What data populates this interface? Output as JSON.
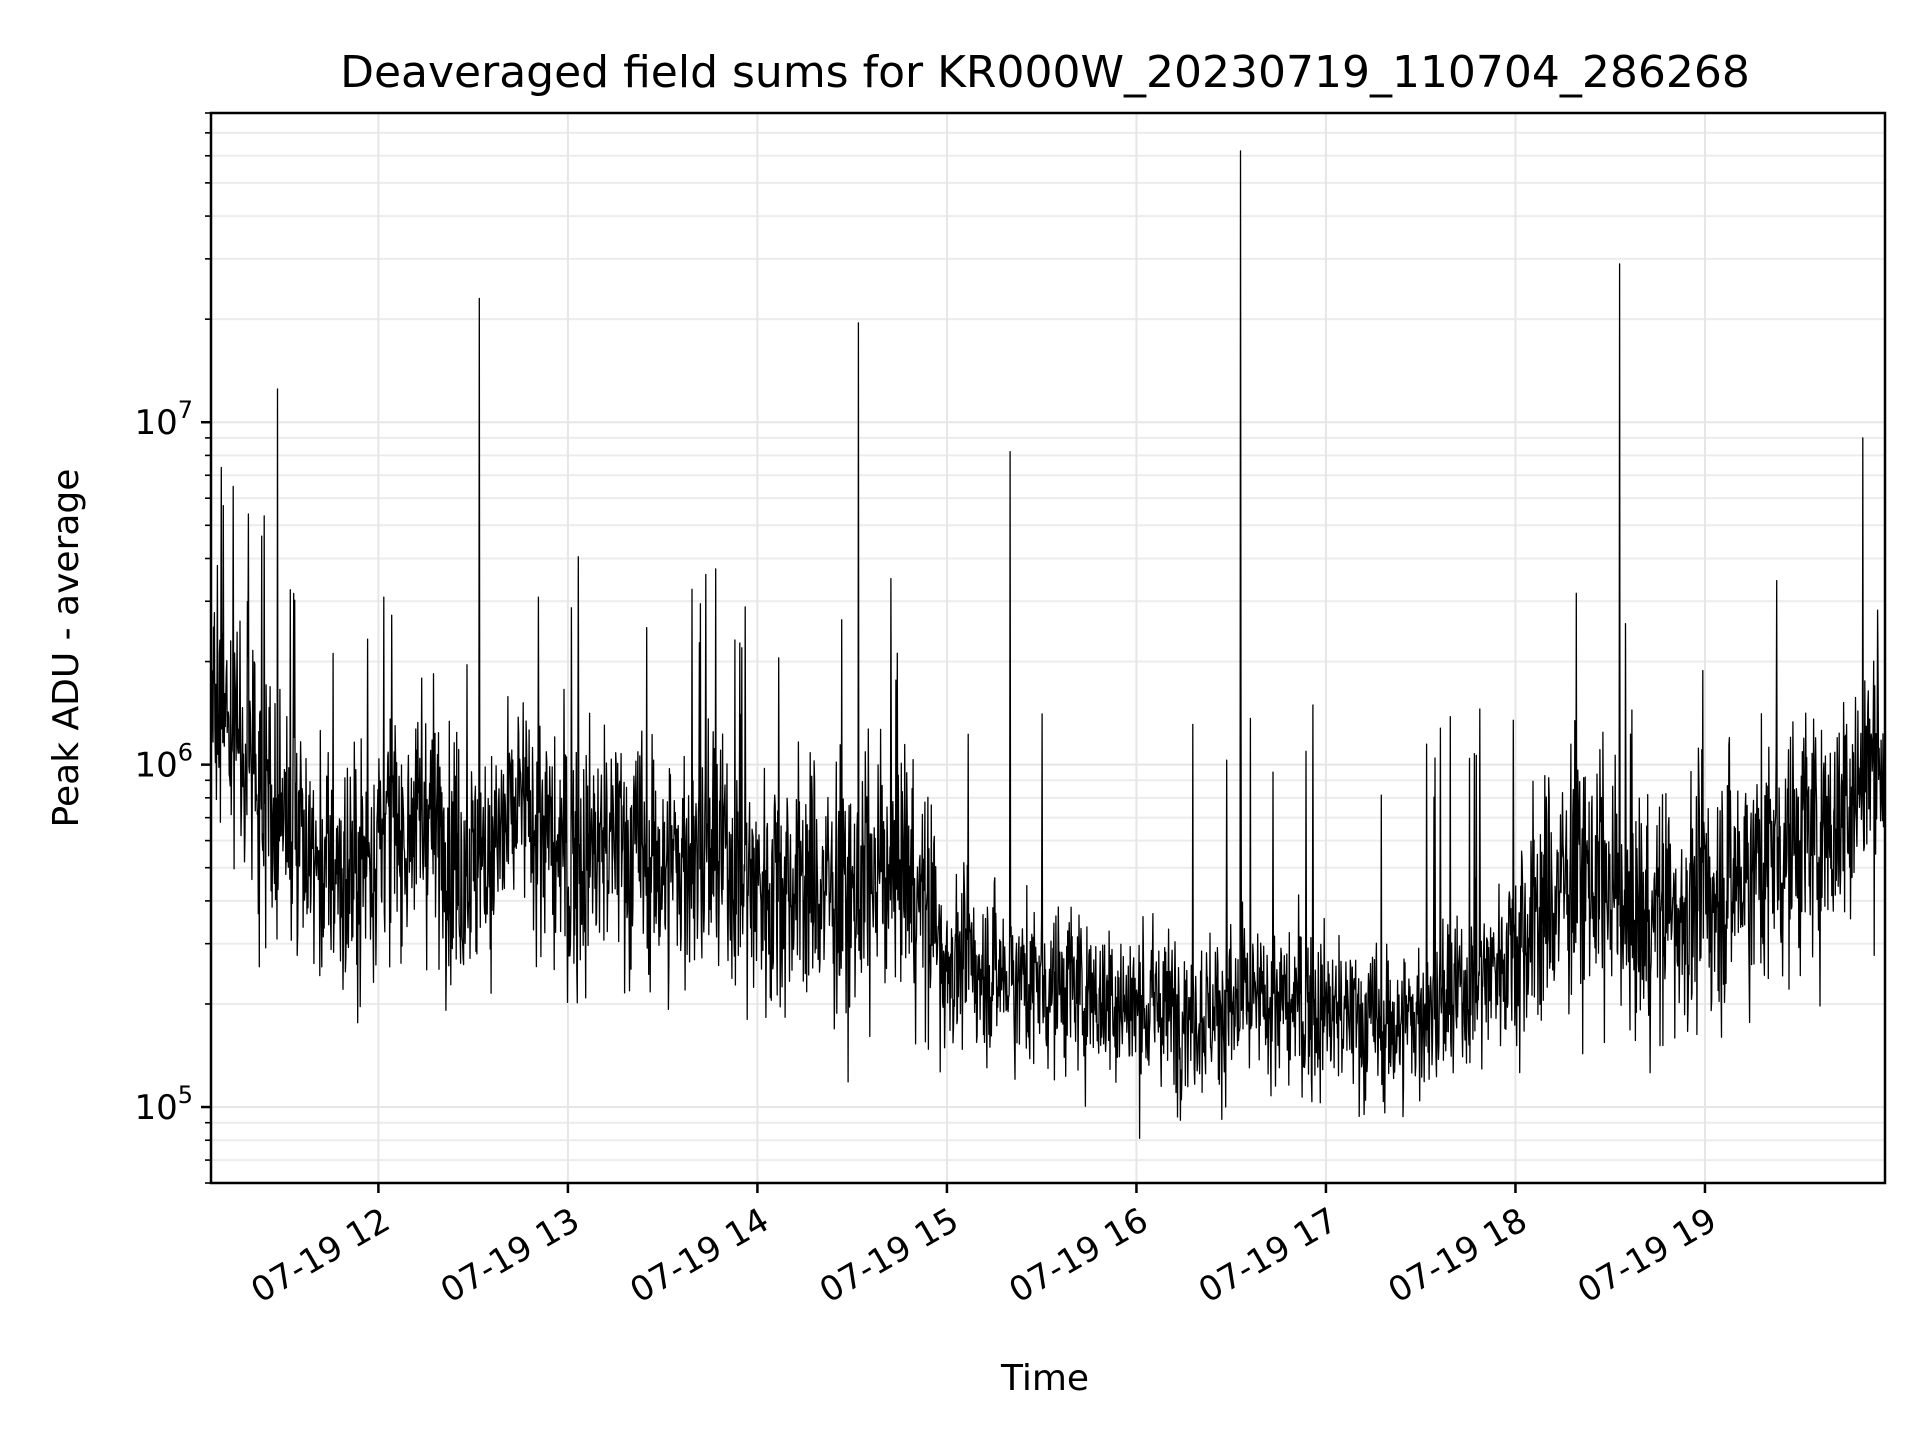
{
  "chart_data": {
    "type": "line",
    "title": "Deaveraged field sums for KR000W_20230719_110704_286268",
    "xlabel": "Time",
    "ylabel": "Peak ADU - average",
    "y_scale": "log",
    "ylim": [
      60000,
      80000000
    ],
    "xlim": [
      "07-19 11:07",
      "07-19 19:57"
    ],
    "grid": true,
    "colors": {
      "series": "#000000",
      "grid": "#e6e6e6"
    },
    "x_ticks": [
      {
        "t": "07-19 12:00",
        "label": "07-19 12"
      },
      {
        "t": "07-19 13:00",
        "label": "07-19 13"
      },
      {
        "t": "07-19 14:00",
        "label": "07-19 14"
      },
      {
        "t": "07-19 15:00",
        "label": "07-19 15"
      },
      {
        "t": "07-19 16:00",
        "label": "07-19 16"
      },
      {
        "t": "07-19 17:00",
        "label": "07-19 17"
      },
      {
        "t": "07-19 18:00",
        "label": "07-19 18"
      },
      {
        "t": "07-19 19:00",
        "label": "07-19 19"
      }
    ],
    "y_ticks": [
      {
        "value": 100000,
        "base": "10",
        "exp": "5"
      },
      {
        "value": 1000000,
        "base": "10",
        "exp": "6"
      },
      {
        "value": 10000000,
        "base": "10",
        "exp": "7"
      }
    ],
    "series": [
      {
        "baseline": [
          {
            "t": "07-19 11:07",
            "y": 1500000
          },
          {
            "t": "07-19 11:20",
            "y": 1000000
          },
          {
            "t": "07-19 11:35",
            "y": 550000
          },
          {
            "t": "07-19 11:50",
            "y": 450000
          },
          {
            "t": "07-19 12:00",
            "y": 600000
          },
          {
            "t": "07-19 12:15",
            "y": 700000
          },
          {
            "t": "07-19 12:30",
            "y": 500000
          },
          {
            "t": "07-19 12:45",
            "y": 750000
          },
          {
            "t": "07-19 13:00",
            "y": 500000
          },
          {
            "t": "07-19 13:15",
            "y": 600000
          },
          {
            "t": "07-19 13:30",
            "y": 500000
          },
          {
            "t": "07-19 13:45",
            "y": 550000
          },
          {
            "t": "07-19 14:00",
            "y": 450000
          },
          {
            "t": "07-19 14:15",
            "y": 450000
          },
          {
            "t": "07-19 14:30",
            "y": 400000
          },
          {
            "t": "07-19 14:45",
            "y": 550000
          },
          {
            "t": "07-19 15:00",
            "y": 270000
          },
          {
            "t": "07-19 15:20",
            "y": 240000
          },
          {
            "t": "07-19 15:40",
            "y": 220000
          },
          {
            "t": "07-19 16:00",
            "y": 195000
          },
          {
            "t": "07-19 16:20",
            "y": 190000
          },
          {
            "t": "07-19 16:40",
            "y": 200000
          },
          {
            "t": "07-19 17:00",
            "y": 190000
          },
          {
            "t": "07-19 17:20",
            "y": 170000
          },
          {
            "t": "07-19 17:40",
            "y": 200000
          },
          {
            "t": "07-19 18:00",
            "y": 300000
          },
          {
            "t": "07-19 18:20",
            "y": 500000
          },
          {
            "t": "07-19 18:40",
            "y": 350000
          },
          {
            "t": "07-19 19:00",
            "y": 400000
          },
          {
            "t": "07-19 19:20",
            "y": 550000
          },
          {
            "t": "07-19 19:40",
            "y": 650000
          },
          {
            "t": "07-19 19:57",
            "y": 1200000
          }
        ],
        "spikes": [
          {
            "t": "07-19 11:28",
            "y": 12500000
          },
          {
            "t": "07-19 12:32",
            "y": 23000000
          },
          {
            "t": "07-19 14:32",
            "y": 19500000
          },
          {
            "t": "07-19 15:20",
            "y": 8200000
          },
          {
            "t": "07-19 16:33",
            "y": 62000000
          },
          {
            "t": "07-19 18:33",
            "y": 29000000
          },
          {
            "t": "07-19 19:50",
            "y": 9000000
          }
        ]
      }
    ]
  }
}
